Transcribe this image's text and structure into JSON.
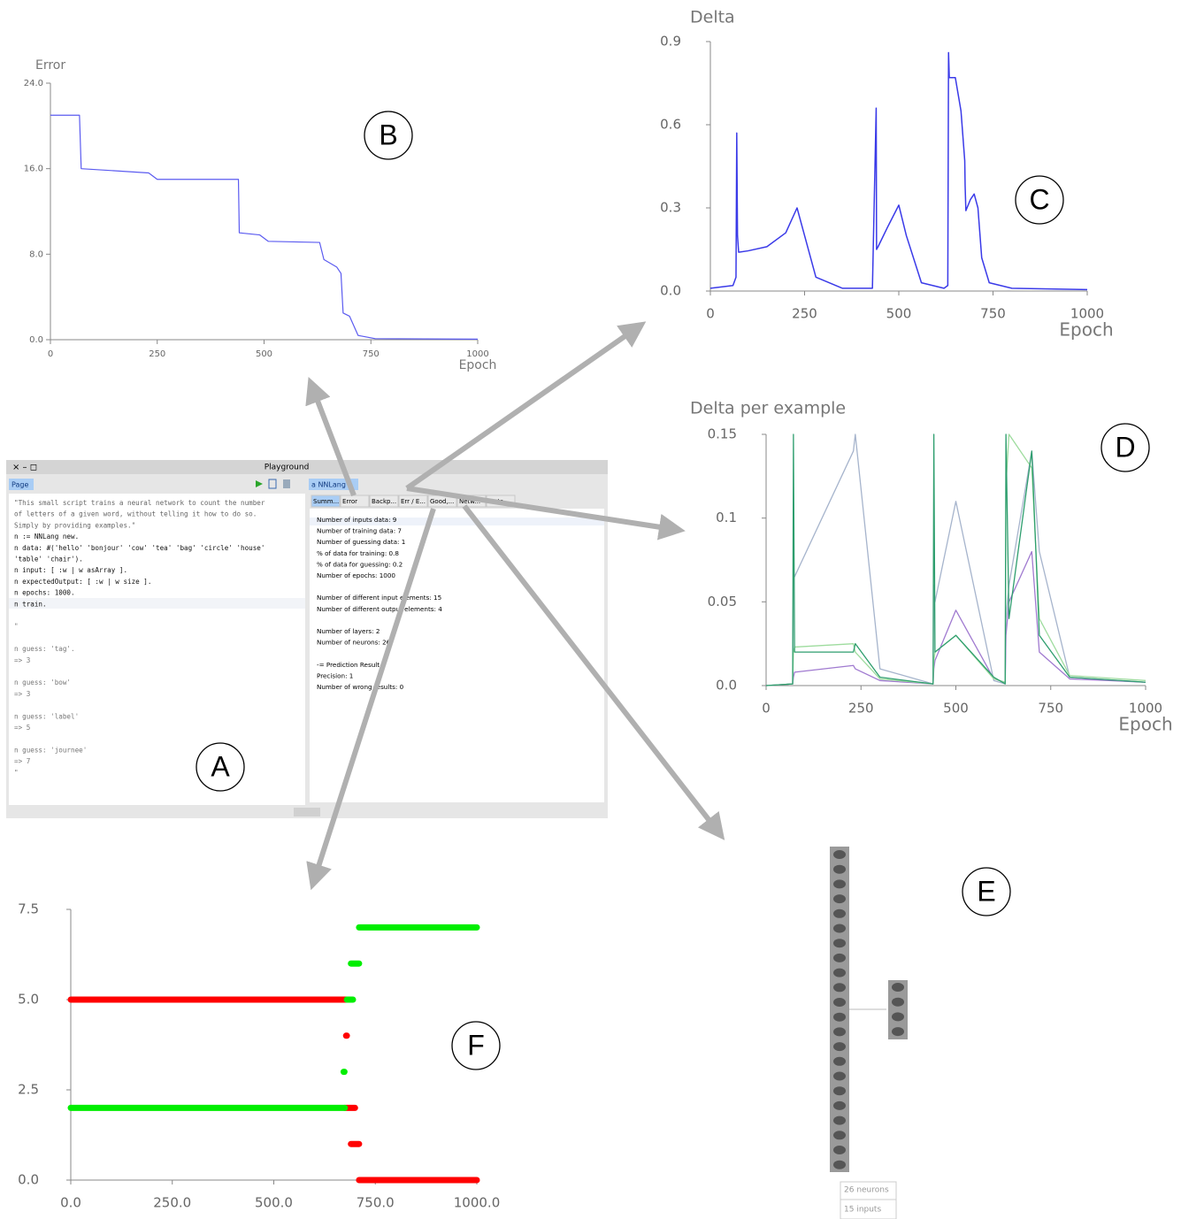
{
  "panel_labels": [
    "A",
    "B",
    "C",
    "D",
    "E",
    "F"
  ],
  "chart_data": [
    {
      "type": "line",
      "y_label": "Error",
      "x_label": "Epoch",
      "x": [
        0,
        68,
        72,
        230,
        250,
        440,
        442,
        490,
        510,
        630,
        640,
        670,
        680,
        685,
        700,
        720,
        760,
        1000
      ],
      "series": [
        {
          "color": "#5b5bf0",
          "values": [
            21,
            21,
            16,
            15.6,
            15,
            15,
            10,
            9.8,
            9.2,
            9.1,
            7.5,
            6.8,
            6.2,
            2.5,
            2.2,
            0.4,
            0.1,
            0.05
          ]
        }
      ],
      "xlim": [
        0,
        1000
      ],
      "xticks": [
        0,
        250,
        500,
        750,
        1000
      ],
      "ylim": [
        0,
        24
      ],
      "yticks": [
        {
          "value": 0,
          "label": "0.0"
        },
        {
          "value": 8,
          "label": "8.0"
        },
        {
          "value": 16,
          "label": "16.0"
        },
        {
          "value": 24,
          "label": "24.0"
        }
      ]
    },
    {
      "type": "line",
      "title": "Delta",
      "x_label": "Epoch",
      "x": [
        0,
        60,
        68,
        70,
        72,
        75,
        100,
        150,
        200,
        230,
        250,
        280,
        350,
        430,
        440,
        441,
        445,
        470,
        500,
        520,
        560,
        620,
        630,
        632,
        634,
        650,
        665,
        675,
        676,
        678,
        690,
        700,
        710,
        720,
        740,
        800,
        1000
      ],
      "series": [
        {
          "color": "#3a3ae8",
          "values": [
            0.01,
            0.02,
            0.05,
            0.57,
            0.2,
            0.14,
            0.145,
            0.16,
            0.21,
            0.3,
            0.2,
            0.05,
            0.01,
            0.01,
            0.66,
            0.15,
            0.16,
            0.23,
            0.31,
            0.2,
            0.03,
            0.01,
            0.02,
            0.86,
            0.77,
            0.77,
            0.65,
            0.47,
            0.38,
            0.29,
            0.33,
            0.35,
            0.3,
            0.12,
            0.03,
            0.01,
            0.005
          ]
        }
      ],
      "xlim": [
        0,
        1000
      ],
      "xticks": [
        0,
        250,
        500,
        750,
        1000
      ],
      "ylim": [
        0,
        0.9
      ],
      "yticks": [
        {
          "value": 0,
          "label": "0.0"
        },
        0.3,
        0.6,
        0.9
      ]
    },
    {
      "type": "line",
      "title": "Delta per example",
      "x_label": "Epoch",
      "x": [
        0,
        70,
        72,
        75,
        230,
        235,
        300,
        440,
        442,
        445,
        500,
        600,
        630,
        632,
        640,
        700,
        720,
        800,
        1000
      ],
      "series": [
        {
          "color": "#a6b4cc",
          "values": [
            0,
            0.001,
            0.07,
            0.065,
            0.14,
            0.15,
            0.01,
            0.001,
            0.06,
            0.05,
            0.11,
            0.003,
            0.001,
            0.04,
            0.06,
            0.14,
            0.08,
            0.005,
            0.002
          ]
        },
        {
          "color": "#a07ad0",
          "values": [
            0,
            0.001,
            0.005,
            0.008,
            0.012,
            0.01,
            0.003,
            0.001,
            0.01,
            0.015,
            0.045,
            0.004,
            0.002,
            0.03,
            0.05,
            0.08,
            0.02,
            0.004,
            0.002
          ]
        },
        {
          "color": "#9edc9e",
          "values": [
            0,
            0.001,
            0.02,
            0.023,
            0.025,
            0.02,
            0.004,
            0.001,
            0.015,
            0.02,
            0.03,
            0.004,
            0.002,
            0.12,
            0.15,
            0.13,
            0.04,
            0.006,
            0.003
          ]
        },
        {
          "color": "#2e9e6e",
          "values": [
            0,
            0.001,
            0.15,
            0.02,
            0.02,
            0.025,
            0.005,
            0.001,
            0.15,
            0.02,
            0.03,
            0.005,
            0.001,
            0.15,
            0.04,
            0.14,
            0.03,
            0.005,
            0.002
          ]
        }
      ],
      "xlim": [
        0,
        1000
      ],
      "xticks": [
        0,
        250,
        500,
        750,
        1000
      ],
      "ylim": [
        0,
        0.15
      ],
      "yticks": [
        {
          "value": 0,
          "label": "0.0"
        },
        0.05,
        0.1,
        0.15
      ]
    },
    {
      "type": "segments",
      "series": [
        {
          "color": "#ff0000",
          "segments": [
            {
              "x": [
                0,
                680
              ],
              "y": 5
            },
            {
              "x": [
                678,
                680
              ],
              "y": 4
            },
            {
              "x": [
                675,
                700
              ],
              "y": 2
            },
            {
              "x": [
                690,
                710
              ],
              "y": 1
            },
            {
              "x": [
                710,
                1000
              ],
              "y": 0
            }
          ]
        },
        {
          "color": "#00ee00",
          "segments": [
            {
              "x": [
                710,
                1000
              ],
              "y": 7
            },
            {
              "x": [
                690,
                710
              ],
              "y": 6
            },
            {
              "x": [
                680,
                695
              ],
              "y": 5
            },
            {
              "x": [
                672,
                674
              ],
              "y": 3
            },
            {
              "x": [
                0,
                675
              ],
              "y": 2
            }
          ]
        }
      ],
      "xlim": [
        0,
        1000
      ],
      "xticks": [
        {
          "value": 0,
          "label": "0.0"
        },
        {
          "value": 250,
          "label": "250.0"
        },
        {
          "value": 500,
          "label": "500.0"
        },
        {
          "value": 750,
          "label": "750.0"
        },
        {
          "value": 1000,
          "label": "1000.0"
        }
      ],
      "ylim": [
        0,
        7.5
      ],
      "yticks": [
        {
          "value": 0,
          "label": "0.0"
        },
        2.5,
        {
          "value": 5,
          "label": "5.0"
        },
        7.5
      ]
    }
  ],
  "playground": {
    "title": "Playground",
    "page_tab": "Page",
    "object_tab": "a NNLang",
    "inspector_tabs": [
      "Summ...",
      "Error",
      "Backp...",
      "Err / E...",
      "Good,...",
      "Netw...",
      "Meta"
    ],
    "code_blocks": [
      [
        "\"This small script trains a neural network to count the number",
        "of letters of a given word, without telling it how to do so.",
        "Simply by providing examples.\"",
        "n := NNLang new.",
        "n data: #('hello' 'bonjour' 'cow' 'tea' 'bag' 'circle' 'house'",
        "'table' 'chair').",
        "n input: [ :w | w asArray ].",
        "n expectedOutput: [ :w | w size ].",
        "n epochs: 1000.",
        "n train."
      ],
      [
        "\""
      ],
      [
        "n guess: 'tag'.",
        "=> 3"
      ],
      [
        "n guess: 'bow'",
        "=> 3"
      ],
      [
        "n guess: 'label'",
        "=> 5"
      ],
      [
        "n guess: 'journee'",
        "=> 7",
        "\""
      ]
    ],
    "summary_blocks": [
      [
        "Number of inputs data: 9",
        "Number of training data: 7",
        "Number of guessing data: 1",
        "% of data for training: 0.8",
        "% of data for guessing: 0.2",
        "Number of epochs: 1000"
      ],
      [
        "Number of different input elements: 15",
        "Number of different output elements: 4"
      ],
      [
        "Number of layers: 2",
        "Number of neurons: 26"
      ],
      [
        "-= Prediction Result",
        "Precision: 1",
        "Number of wrong results: 0"
      ]
    ]
  },
  "network": {
    "neurons_label": "26 neurons",
    "inputs_label": "15 inputs"
  }
}
